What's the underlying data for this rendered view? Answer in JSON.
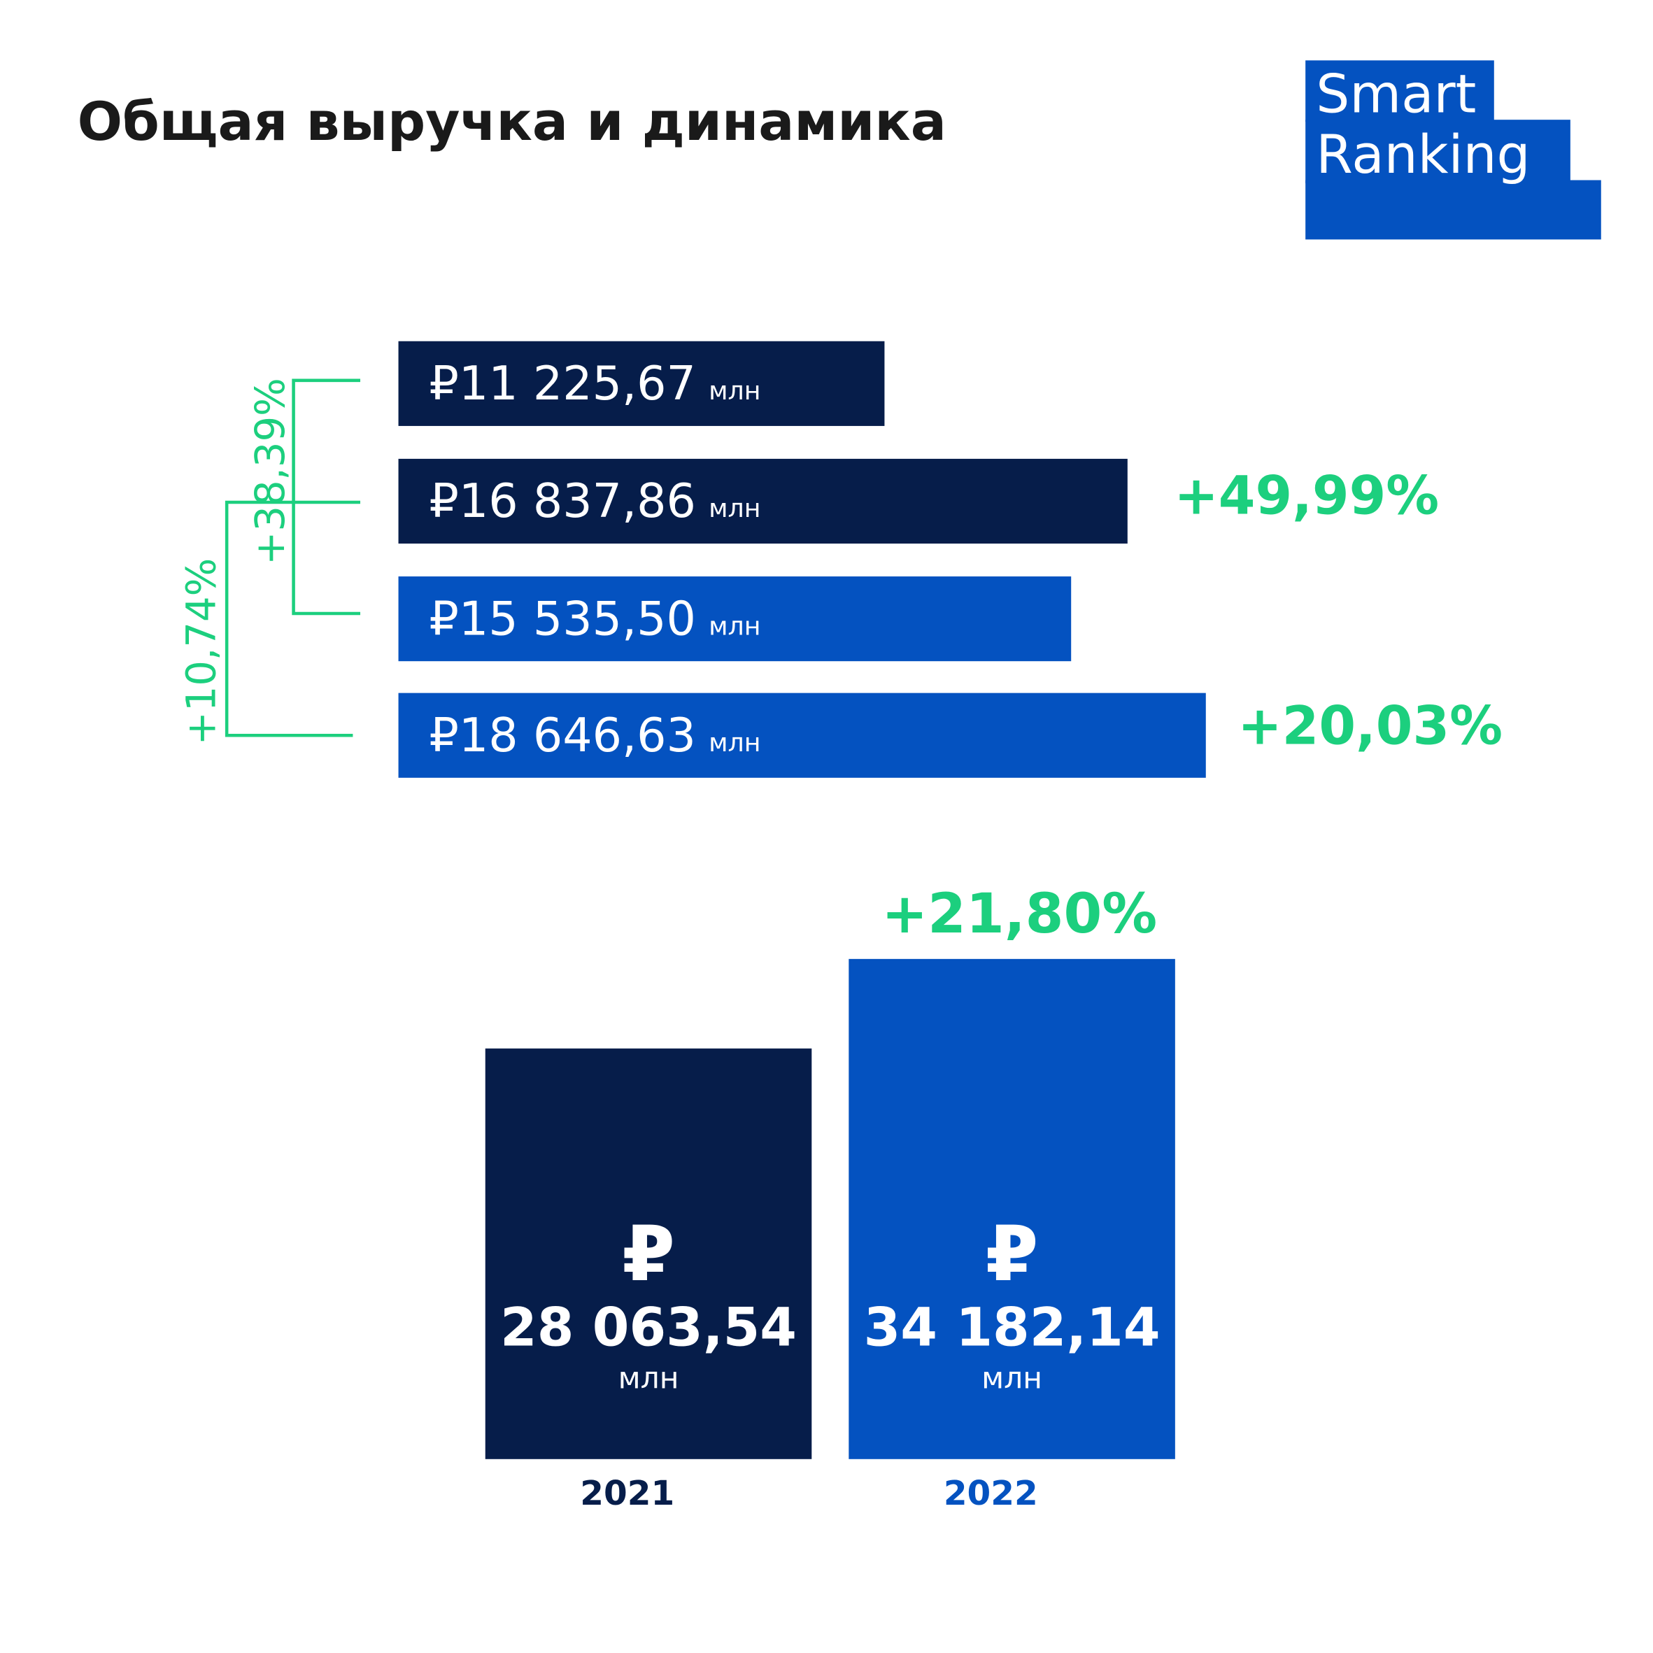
{
  "title": "Общая выручка и динамика",
  "logo": [
    "Smart",
    "Ranking"
  ],
  "chart_data": [
    {
      "type": "hbar",
      "categories": [
        null,
        null,
        null,
        null
      ],
      "values": [
        11225.67,
        16837.86,
        15535.5,
        18646.63
      ],
      "value_labels": [
        "₽11 225,67",
        "₽16 837,86",
        "₽15 535,50",
        "₽18 646,63"
      ],
      "unit": "млн",
      "colors": [
        "#061d4a",
        "#061d4a",
        "#0452c0",
        "#0452c0"
      ],
      "annotations": [
        "+49,99%",
        "+20,03%",
        "+38,39%",
        "+10,74%"
      ],
      "annotation_color": "#1ccf7e"
    },
    {
      "type": "bar",
      "categories": [
        "2021",
        "2022"
      ],
      "values": [
        28063.54,
        34182.14
      ],
      "value_labels": [
        "28 063,54",
        "34 182,14"
      ],
      "currency": "₽",
      "unit": "млн",
      "colors": [
        "#061d4a",
        "#0452c0"
      ],
      "annotations": [
        "+21,80%"
      ],
      "annotation_color": "#1ccf7e"
    }
  ]
}
